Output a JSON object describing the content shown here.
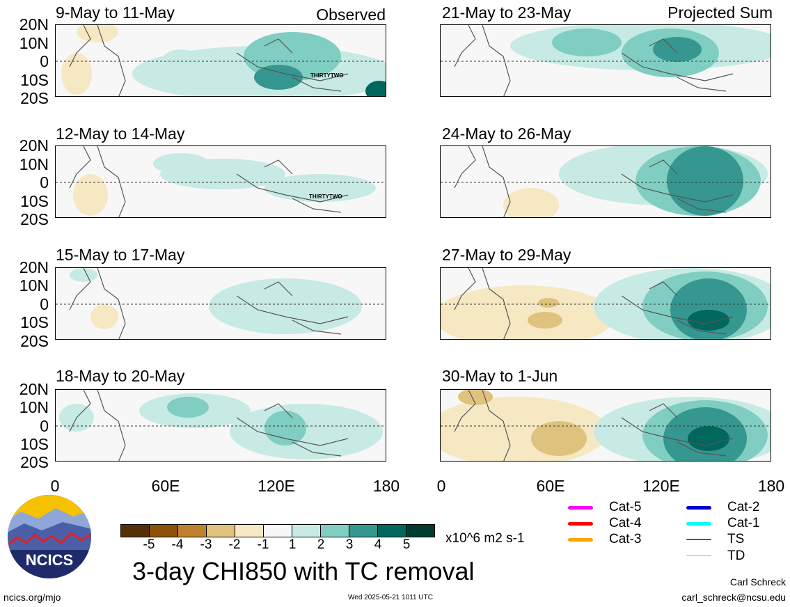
{
  "panels_left": [
    {
      "title": "9-May to 11-May",
      "corner": "Observed",
      "tc_label": "THIRTYTWO"
    },
    {
      "title": "12-May to 14-May",
      "corner": "",
      "tc_label": "THIRTYTWO"
    },
    {
      "title": "15-May to 17-May",
      "corner": "",
      "tc_label": ""
    },
    {
      "title": "18-May to 20-May",
      "corner": "",
      "tc_label": ""
    }
  ],
  "panels_right": [
    {
      "title": "21-May to 23-May",
      "corner": "Projected Sum"
    },
    {
      "title": "24-May to 26-May",
      "corner": ""
    },
    {
      "title": "27-May to 29-May",
      "corner": ""
    },
    {
      "title": "30-May to 1-Jun",
      "corner": ""
    }
  ],
  "lat_ticks": [
    "20N",
    "10N",
    "0",
    "10S",
    "20S"
  ],
  "lon_ticks": [
    "0",
    "60E",
    "120E",
    "180"
  ],
  "colorbar": {
    "ticks": [
      "-5",
      "-4",
      "-3",
      "-2",
      "-1",
      "1",
      "2",
      "3",
      "4",
      "5"
    ],
    "colors": [
      "#543005",
      "#8c510a",
      "#bf812d",
      "#dfc27d",
      "#f6e8c3",
      "#f7f7f7",
      "#c7eae5",
      "#80cdc1",
      "#35978f",
      "#01665e",
      "#003c30"
    ],
    "unit": "x10^6 m2 s-1"
  },
  "legend": [
    {
      "label": "Cat-5",
      "color": "#ff00ff"
    },
    {
      "label": "Cat-4",
      "color": "#ff0000"
    },
    {
      "label": "Cat-3",
      "color": "#ffa500"
    },
    {
      "label": "Cat-2",
      "color": "#0000cd"
    },
    {
      "label": "Cat-1",
      "color": "#00ffff"
    },
    {
      "label": "TS",
      "color": "#555555"
    },
    {
      "label": "TD",
      "color": "#aaaaaa"
    }
  ],
  "logo_text": "NCICS",
  "main_title": "3-day CHI850 with TC removal",
  "footer_left": "ncics.org/mjo",
  "footer_center": "Wed 2025-05-21 1011 UTC",
  "author_name": "Carl Schreck",
  "author_email": "carl_schreck@ncsu.edu"
}
